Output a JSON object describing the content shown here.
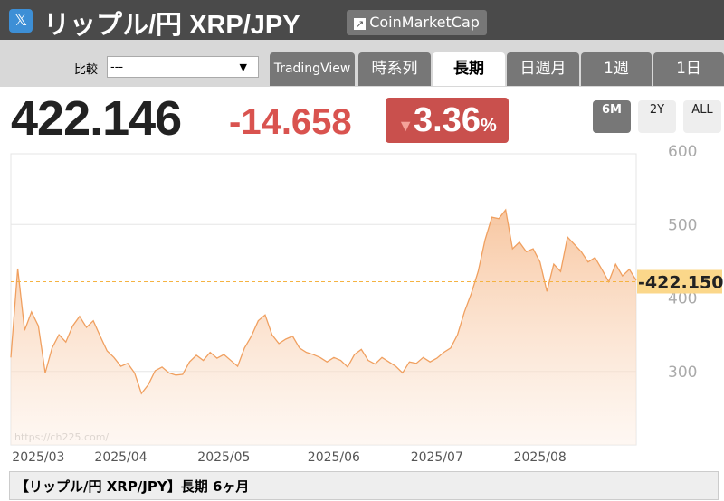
{
  "header": {
    "icon": "𝕏",
    "title": "リップル/円 XRP/JPY",
    "link_icon": "↗",
    "link": "CoinMarketCap"
  },
  "controls": {
    "compare_label": "比較",
    "compare_value": "---",
    "dropdown_arrow": "▼",
    "tabs": [
      "TradingView",
      "時系列",
      "長期",
      "日週月",
      "1週",
      "1日"
    ],
    "active_tab": 2
  },
  "price": {
    "last": "422.146",
    "change": "-14.658",
    "arrow": "▼",
    "change_percent": "3.36",
    "percent_unit": "%"
  },
  "ranges": {
    "buttons": [
      "6M",
      "2Y",
      "ALL"
    ],
    "active": 0
  },
  "chart_data": {
    "type": "line",
    "color": "#f0a060",
    "ylim": [
      200,
      600
    ],
    "yticks": [
      300,
      400,
      500,
      600
    ],
    "grid": true,
    "current": {
      "value": 422.15,
      "label": "-422.150"
    },
    "watermark": "https://ch225.com/",
    "categories": [
      null,
      null,
      null,
      null,
      "2025/03",
      null,
      null,
      null,
      null,
      null,
      null,
      null,
      null,
      null,
      null,
      null,
      "2025/04",
      null,
      null,
      null,
      null,
      null,
      null,
      null,
      null,
      null,
      null,
      null,
      null,
      null,
      null,
      "2025/05",
      null,
      null,
      null,
      null,
      null,
      null,
      null,
      null,
      null,
      null,
      null,
      null,
      null,
      null,
      null,
      "2025/06",
      null,
      null,
      null,
      null,
      null,
      null,
      null,
      null,
      null,
      null,
      null,
      null,
      null,
      null,
      "2025/07",
      null,
      null,
      null,
      null,
      null,
      null,
      null,
      null,
      null,
      null,
      null,
      null,
      null,
      null,
      "2025/08",
      null,
      null,
      null,
      null,
      null,
      null,
      null,
      null,
      null,
      null,
      null,
      null,
      null,
      null
    ],
    "values": [
      319,
      440,
      356,
      381,
      362,
      298,
      332,
      350,
      340,
      362,
      375,
      360,
      369,
      348,
      328,
      319,
      307,
      311,
      298,
      270,
      282,
      301,
      306,
      298,
      295,
      296,
      313,
      322,
      315,
      326,
      318,
      323,
      315,
      307,
      332,
      348,
      369,
      377,
      350,
      338,
      344,
      348,
      332,
      326,
      323,
      319,
      313,
      319,
      315,
      306,
      323,
      330,
      315,
      310,
      319,
      313,
      307,
      298,
      313,
      311,
      319,
      313,
      318,
      326,
      332,
      350,
      381,
      406,
      436,
      479,
      510,
      508,
      520,
      467,
      476,
      463,
      467,
      449,
      409,
      446,
      436,
      483,
      473,
      463,
      449,
      455,
      439,
      422,
      446,
      430,
      439,
      424
    ]
  },
  "footer": {
    "text": "【リップル/円 XRP/JPY】長期 6ヶ月"
  }
}
